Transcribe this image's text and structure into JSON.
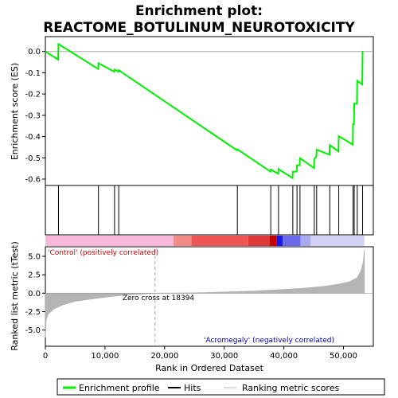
{
  "chart_data": {
    "type": "line",
    "title_line1": "Enrichment plot:",
    "title_line2": "REACTOME_BOTULINUM_NEUROTOXICITY",
    "xlabel": "Rank in Ordered Dataset",
    "es_ylabel": "Enrichment score (ES)",
    "metric_ylabel": "Ranked list metric (tTest)",
    "xlim": [
      0,
      55000
    ],
    "es_ylim": [
      -0.63,
      0.07
    ],
    "metric_ylim": [
      -7.2,
      6.3
    ],
    "x_ticks": [
      0,
      10000,
      20000,
      30000,
      40000,
      50000
    ],
    "x_tick_labels": [
      "0",
      "10,000",
      "20,000",
      "30,000",
      "40,000",
      "50,000"
    ],
    "es_ticks": [
      0.0,
      -0.1,
      -0.2,
      -0.3,
      -0.4,
      -0.5,
      -0.6
    ],
    "es_tick_labels": [
      "0.0",
      "-0.1",
      "-0.2",
      "-0.3",
      "-0.4",
      "-0.5",
      "-0.6"
    ],
    "metric_ticks": [
      5.0,
      2.5,
      0.0,
      -2.5,
      -5.0
    ],
    "metric_tick_labels": [
      "5.0",
      "2.5",
      "0.0",
      "-2.5",
      "-5.0"
    ],
    "n_genes": 53500,
    "hits": [
      0,
      2200,
      8900,
      11600,
      12300,
      32200,
      37800,
      39100,
      41500,
      42200,
      42700,
      45100,
      45500,
      47700,
      49200,
      51600,
      51800,
      52300,
      53200
    ],
    "es_curve": [
      [
        0,
        0.0
      ],
      [
        2150,
        -0.038
      ],
      [
        2200,
        0.035
      ],
      [
        8850,
        -0.082
      ],
      [
        8900,
        -0.055
      ],
      [
        11550,
        -0.095
      ],
      [
        11600,
        -0.085
      ],
      [
        12250,
        -0.095
      ],
      [
        12300,
        -0.088
      ],
      [
        32150,
        -0.465
      ],
      [
        32200,
        -0.46
      ],
      [
        37750,
        -0.565
      ],
      [
        37800,
        -0.555
      ],
      [
        39050,
        -0.575
      ],
      [
        39100,
        -0.553
      ],
      [
        41450,
        -0.595
      ],
      [
        41500,
        -0.565
      ],
      [
        42150,
        -0.565
      ],
      [
        42200,
        -0.535
      ],
      [
        42650,
        -0.535
      ],
      [
        42700,
        -0.502
      ],
      [
        45050,
        -0.548
      ],
      [
        45100,
        -0.505
      ],
      [
        45450,
        -0.495
      ],
      [
        45500,
        -0.462
      ],
      [
        47650,
        -0.485
      ],
      [
        47700,
        -0.44
      ],
      [
        49150,
        -0.47
      ],
      [
        49200,
        -0.398
      ],
      [
        51550,
        -0.438
      ],
      [
        51600,
        -0.342
      ],
      [
        51750,
        -0.342
      ],
      [
        51800,
        -0.245
      ],
      [
        52250,
        -0.245
      ],
      [
        52300,
        -0.138
      ],
      [
        53150,
        -0.155
      ],
      [
        53200,
        0.003
      ]
    ],
    "metric_curve": [
      [
        0,
        -6.0
      ],
      [
        150,
        -3.6
      ],
      [
        500,
        -2.8
      ],
      [
        1500,
        -2.1
      ],
      [
        3000,
        -1.55
      ],
      [
        5000,
        -1.1
      ],
      [
        8000,
        -0.75
      ],
      [
        11000,
        -0.45
      ],
      [
        14000,
        -0.22
      ],
      [
        17000,
        -0.07
      ],
      [
        18394,
        0.0
      ],
      [
        25000,
        0.05
      ],
      [
        35000,
        0.28
      ],
      [
        40000,
        0.5
      ],
      [
        44000,
        0.72
      ],
      [
        47000,
        0.95
      ],
      [
        49000,
        1.2
      ],
      [
        51000,
        1.55
      ],
      [
        52300,
        2.1
      ],
      [
        52900,
        3.0
      ],
      [
        53300,
        4.2
      ],
      [
        53500,
        5.9
      ]
    ],
    "zero_cross_label": "Zero cross at 18394",
    "zero_cross_x": 18394,
    "label_positive": "'Control' (positively correlated)",
    "label_negative": "'Acromegaly' (negatively correlated)",
    "colorbar_segments": [
      {
        "from": 0,
        "to": 21500,
        "color": "#f7b7d9"
      },
      {
        "from": 21500,
        "to": 24500,
        "color": "#f28a8a"
      },
      {
        "from": 24500,
        "to": 34000,
        "color": "#f05555"
      },
      {
        "from": 34000,
        "to": 37600,
        "color": "#e03838"
      },
      {
        "from": 37600,
        "to": 38800,
        "color": "#c80000"
      },
      {
        "from": 38800,
        "to": 39800,
        "color": "#1a1ae0"
      },
      {
        "from": 39800,
        "to": 42800,
        "color": "#6a6aea"
      },
      {
        "from": 42800,
        "to": 44500,
        "color": "#aaaaf0"
      },
      {
        "from": 44500,
        "to": 53500,
        "color": "#d2d2f6"
      }
    ],
    "colors": {
      "enrichment": "#00ee00",
      "hits": "#000000",
      "metric_fill": "#b4b4b4",
      "zero_line": "#aaaaaa",
      "positive_text": "#c80000",
      "negative_text": "#0000b4"
    },
    "legend": {
      "enrichment": "Enrichment profile",
      "hits": "Hits",
      "ranking": "Ranking metric scores"
    }
  }
}
